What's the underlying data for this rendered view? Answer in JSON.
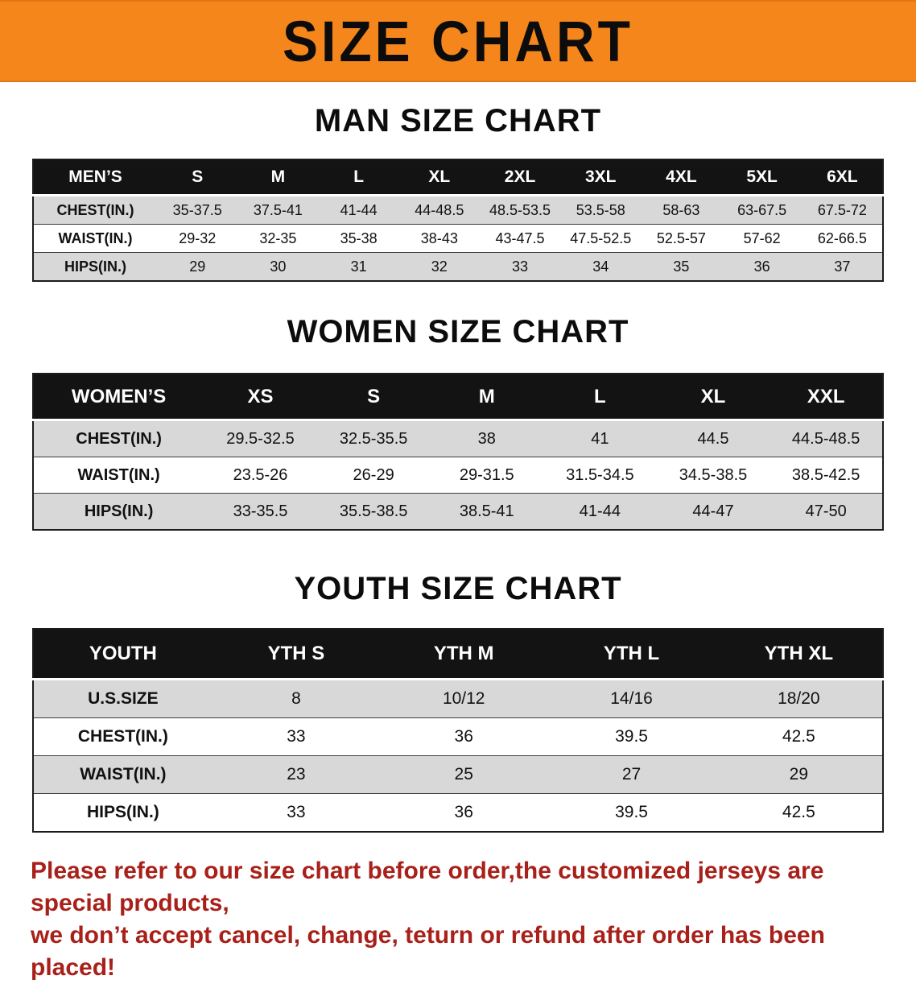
{
  "banner": {
    "title": "SIZE CHART"
  },
  "colors": {
    "banner_bg": "#f5861c",
    "table_header_bg": "#131313",
    "row_shade": "#d8d8d8",
    "note_red": "#a82019"
  },
  "chart_data": [
    {
      "type": "table",
      "id": "mens",
      "title": "MAN SIZE CHART",
      "header_label": "MEN’S",
      "columns": [
        "S",
        "M",
        "L",
        "XL",
        "2XL",
        "3XL",
        "4XL",
        "5XL",
        "6XL"
      ],
      "rows": [
        {
          "label": "CHEST(IN.)",
          "values": [
            "35-37.5",
            "37.5-41",
            "41-44",
            "44-48.5",
            "48.5-53.5",
            "53.5-58",
            "58-63",
            "63-67.5",
            "67.5-72"
          ]
        },
        {
          "label": "WAIST(IN.)",
          "values": [
            "29-32",
            "32-35",
            "35-38",
            "38-43",
            "43-47.5",
            "47.5-52.5",
            "52.5-57",
            "57-62",
            "62-66.5"
          ]
        },
        {
          "label": "HIPS(IN.)",
          "values": [
            "29",
            "30",
            "31",
            "32",
            "33",
            "34",
            "35",
            "36",
            "37"
          ]
        }
      ]
    },
    {
      "type": "table",
      "id": "womens",
      "title": "WOMEN SIZE CHART",
      "header_label": "WOMEN’S",
      "columns": [
        "XS",
        "S",
        "M",
        "L",
        "XL",
        "XXL"
      ],
      "rows": [
        {
          "label": "CHEST(IN.)",
          "values": [
            "29.5-32.5",
            "32.5-35.5",
            "38",
            "41",
            "44.5",
            "44.5-48.5"
          ]
        },
        {
          "label": "WAIST(IN.)",
          "values": [
            "23.5-26",
            "26-29",
            "29-31.5",
            "31.5-34.5",
            "34.5-38.5",
            "38.5-42.5"
          ]
        },
        {
          "label": "HIPS(IN.)",
          "values": [
            "33-35.5",
            "35.5-38.5",
            "38.5-41",
            "41-44",
            "44-47",
            "47-50"
          ]
        }
      ]
    },
    {
      "type": "table",
      "id": "youth",
      "title": "YOUTH SIZE CHART",
      "header_label": "YOUTH",
      "columns": [
        "YTH S",
        "YTH M",
        "YTH L",
        "YTH XL"
      ],
      "rows": [
        {
          "label": "U.S.SIZE",
          "values": [
            "8",
            "10/12",
            "14/16",
            "18/20"
          ]
        },
        {
          "label": "CHEST(IN.)",
          "values": [
            "33",
            "36",
            "39.5",
            "42.5"
          ]
        },
        {
          "label": "WAIST(IN.)",
          "values": [
            "23",
            "25",
            "27",
            "29"
          ]
        },
        {
          "label": "HIPS(IN.)",
          "values": [
            "33",
            "36",
            "39.5",
            "42.5"
          ]
        }
      ]
    }
  ],
  "footer": {
    "line1": "Please refer to our size chart before order,the customized jerseys are special products,",
    "line2": "we don’t accept cancel, change, teturn or refund after order has been placed!"
  }
}
